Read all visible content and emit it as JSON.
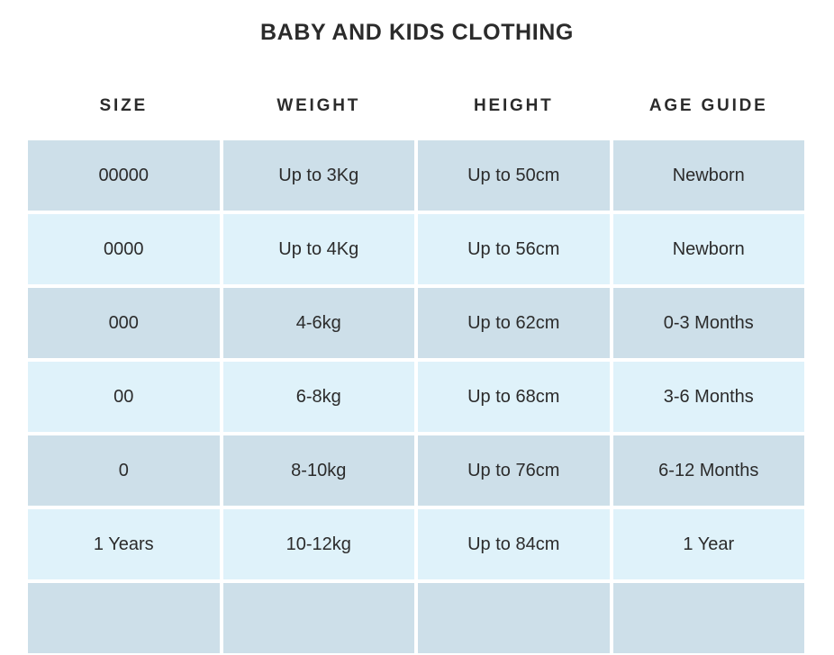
{
  "title": "BABY AND KIDS CLOTHING",
  "chart_data": {
    "type": "table",
    "title": "BABY AND KIDS CLOTHING",
    "headers": [
      "SIZE",
      "WEIGHT",
      "HEIGHT",
      "AGE GUIDE"
    ],
    "rows": [
      [
        "00000",
        "Up to 3Kg",
        "Up to 50cm",
        "Newborn"
      ],
      [
        "0000",
        "Up to 4Kg",
        "Up to 56cm",
        "Newborn"
      ],
      [
        "000",
        "4-6kg",
        "Up to 62cm",
        "0-3 Months"
      ],
      [
        "00",
        "6-8kg",
        "Up to 68cm",
        "3-6 Months"
      ],
      [
        "0",
        "8-10kg",
        "Up to 76cm",
        "6-12 Months"
      ],
      [
        "1 Years",
        "10-12kg",
        "Up to 84cm",
        "1 Year"
      ],
      [
        "",
        "",
        "",
        ""
      ]
    ],
    "layout_hints": {
      "row_style": "alternating dark/light blue bands separated by white gaps",
      "last_row_partially_cut_off": true,
      "alignment": "center"
    }
  },
  "colors": {
    "row_dark": "#cddfe9",
    "row_light": "#dff2fa",
    "text": "#2b2b2b",
    "background": "#ffffff"
  }
}
